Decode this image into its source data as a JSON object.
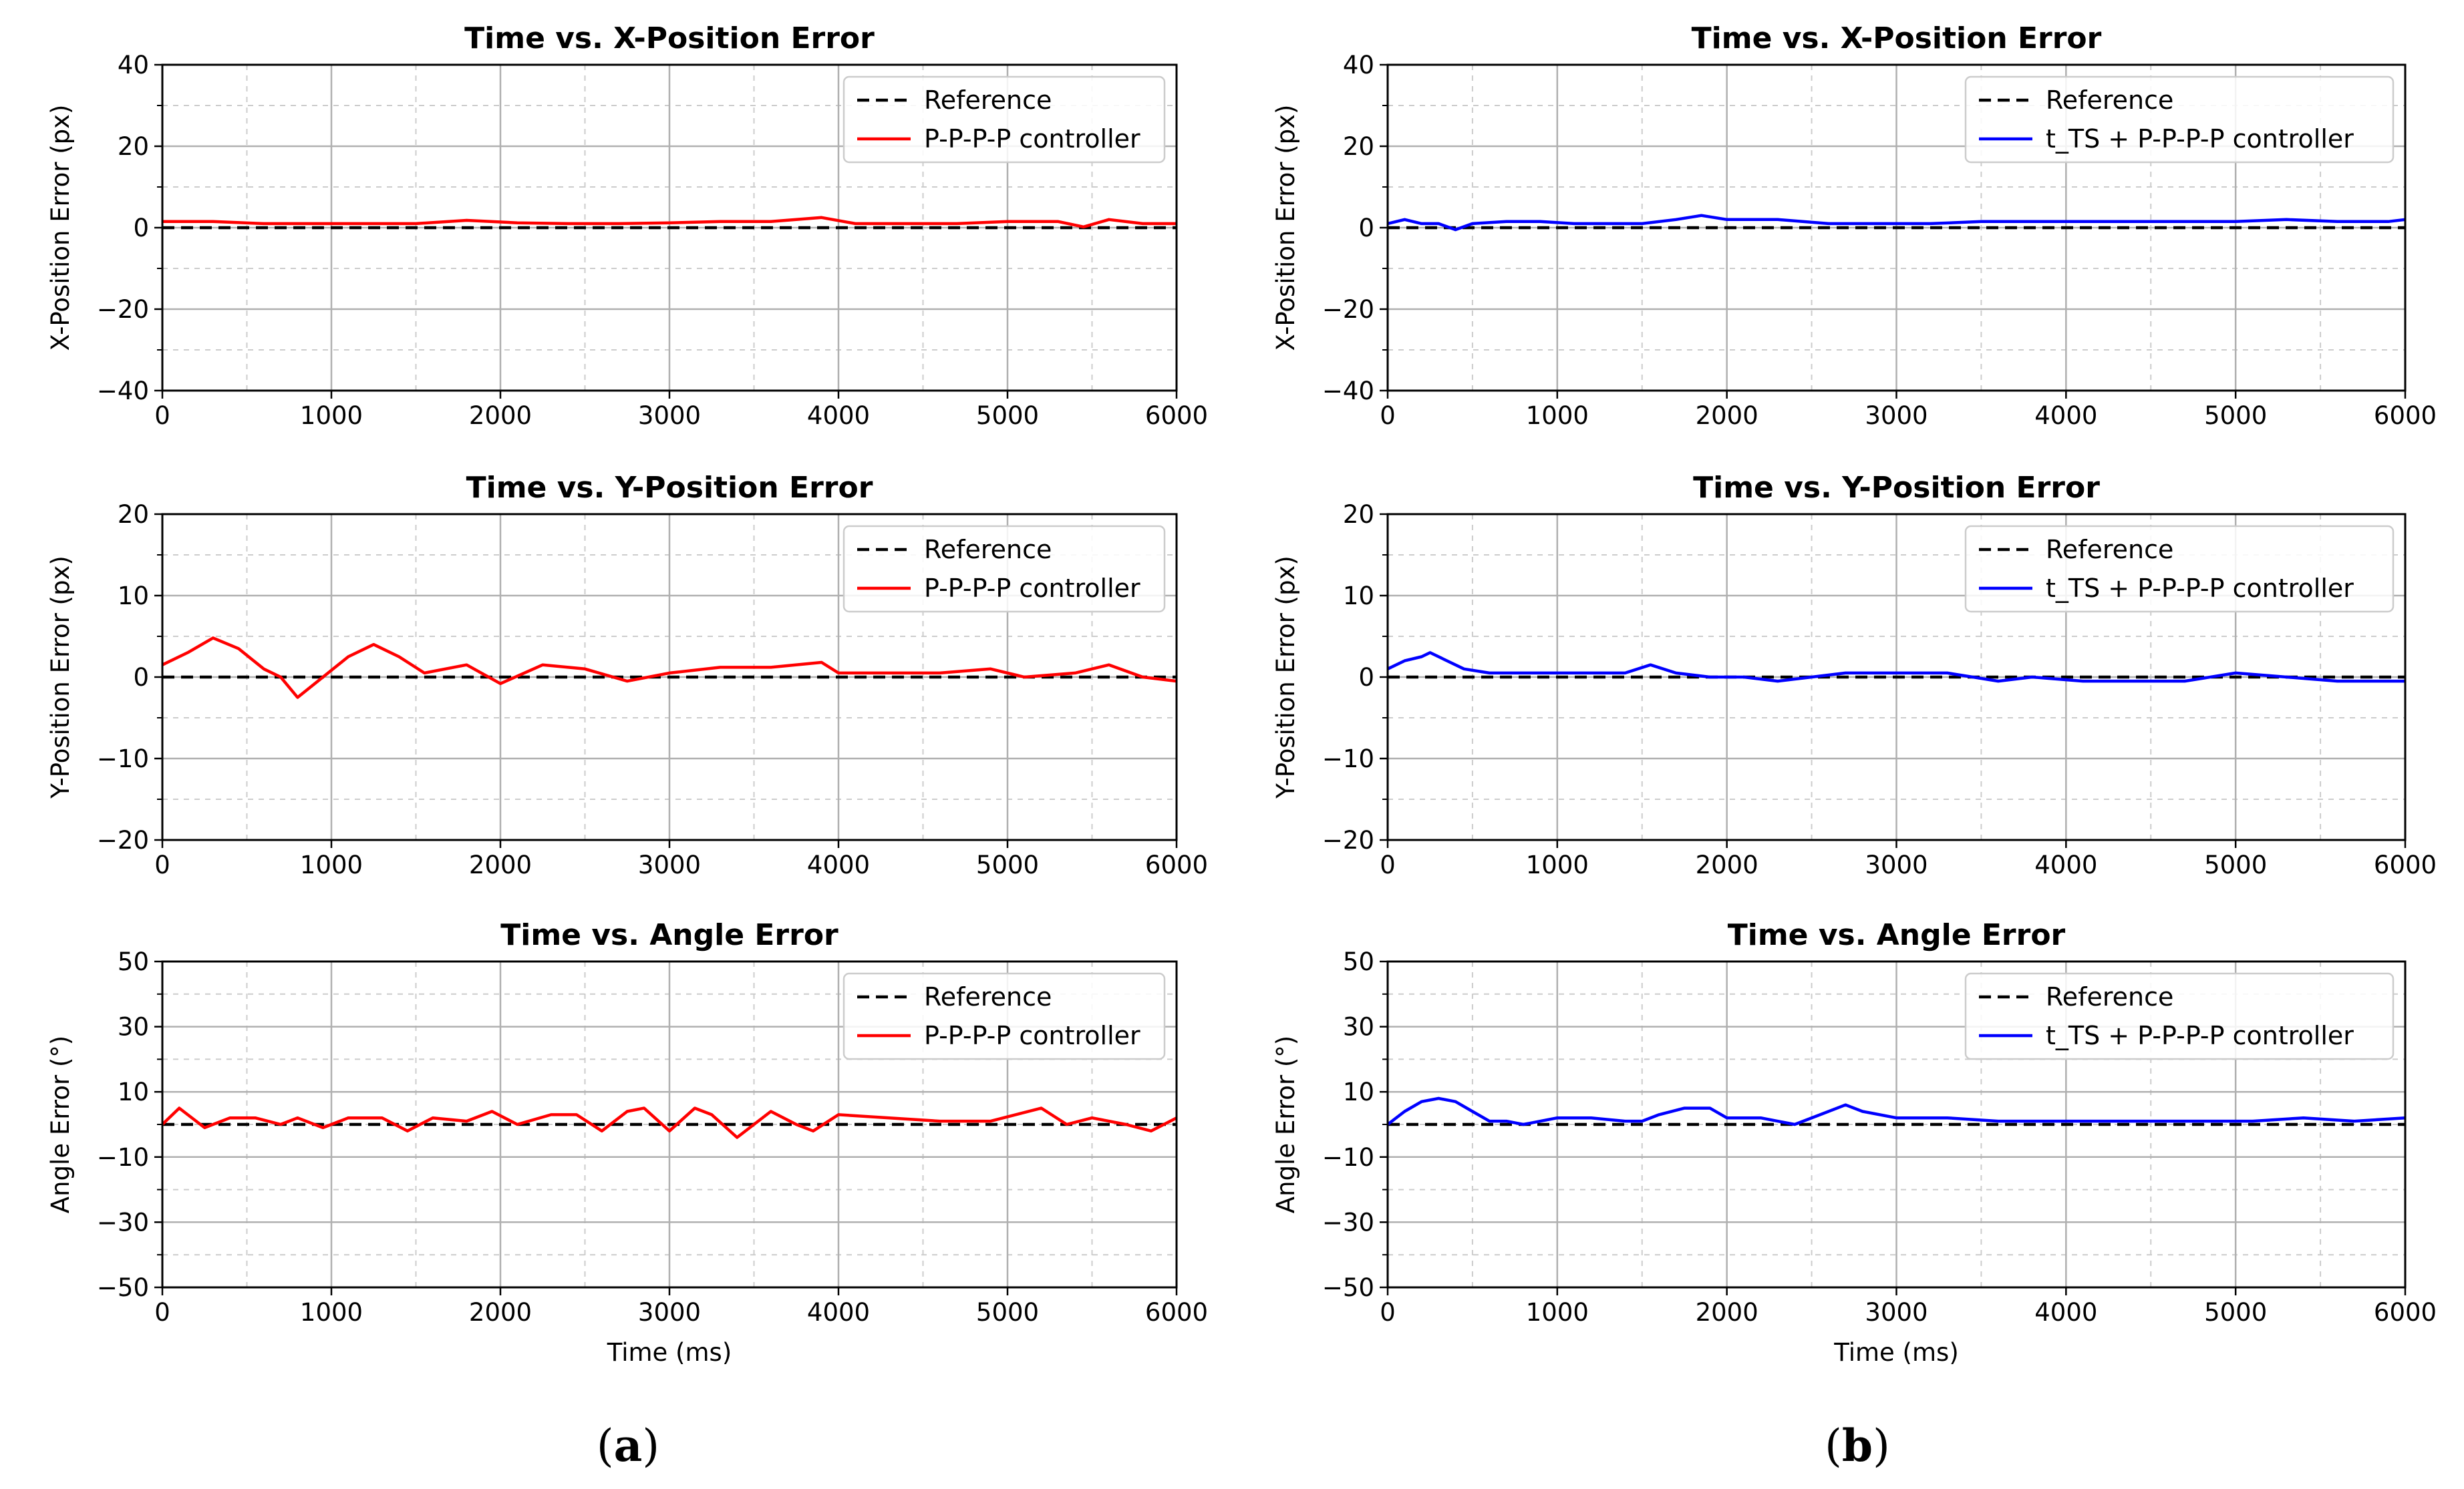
{
  "panel_labels": [
    {
      "open": "(",
      "letter": "a",
      "close": ")"
    },
    {
      "open": "(",
      "letter": "b",
      "close": ")"
    }
  ],
  "chart_data": [
    {
      "type": "line",
      "panel": "a",
      "title": "Time vs. X-Position Error",
      "xlabel": "",
      "ylabel": "X-Position Error (px)",
      "xlim": [
        0,
        6000
      ],
      "ylim": [
        -40,
        40
      ],
      "xticks": [
        0,
        1000,
        2000,
        3000,
        4000,
        5000,
        6000
      ],
      "yticks": [
        -40,
        -20,
        0,
        20,
        40
      ],
      "legend": "top-right",
      "series": [
        {
          "name": "Reference",
          "color": "#000000",
          "style": "dashed",
          "x": [
            0,
            6000
          ],
          "y": [
            0,
            0
          ]
        },
        {
          "name": "P-P-P-P controller",
          "color": "#ff0000",
          "style": "solid",
          "x": [
            0,
            300,
            600,
            900,
            1200,
            1500,
            1800,
            2100,
            2400,
            2700,
            3000,
            3300,
            3600,
            3900,
            4100,
            4400,
            4700,
            5000,
            5300,
            5450,
            5600,
            5800,
            6000
          ],
          "y": [
            1.5,
            1.5,
            1,
            1,
            1,
            1,
            1.8,
            1.2,
            1,
            1,
            1.2,
            1.5,
            1.5,
            2.5,
            1,
            1,
            1,
            1.5,
            1.5,
            0.2,
            2,
            1,
            1
          ]
        }
      ]
    },
    {
      "type": "line",
      "panel": "a",
      "title": "Time vs. Y-Position Error",
      "xlabel": "",
      "ylabel": "Y-Position Error (px)",
      "xlim": [
        0,
        6000
      ],
      "ylim": [
        -20,
        20
      ],
      "xticks": [
        0,
        1000,
        2000,
        3000,
        4000,
        5000,
        6000
      ],
      "yticks": [
        -20,
        -10,
        0,
        10,
        20
      ],
      "legend": "top-right",
      "series": [
        {
          "name": "Reference",
          "color": "#000000",
          "style": "dashed",
          "x": [
            0,
            6000
          ],
          "y": [
            0,
            0
          ]
        },
        {
          "name": "P-P-P-P controller",
          "color": "#ff0000",
          "style": "solid",
          "x": [
            0,
            150,
            300,
            450,
            600,
            700,
            800,
            950,
            1100,
            1250,
            1400,
            1550,
            1800,
            2000,
            2250,
            2500,
            2750,
            3000,
            3300,
            3600,
            3900,
            4000,
            4300,
            4600,
            4900,
            5100,
            5400,
            5600,
            5800,
            6000
          ],
          "y": [
            1.5,
            3,
            4.8,
            3.5,
            1,
            0,
            -2.5,
            0,
            2.5,
            4,
            2.5,
            0.5,
            1.5,
            -0.8,
            1.5,
            1,
            -0.5,
            0.5,
            1.2,
            1.2,
            1.8,
            0.5,
            0.5,
            0.5,
            1,
            0,
            0.5,
            1.5,
            0,
            -0.5
          ]
        }
      ]
    },
    {
      "type": "line",
      "panel": "a",
      "title": "Time vs. Angle Error",
      "xlabel": "Time (ms)",
      "ylabel": "Angle Error (°)",
      "xlim": [
        0,
        6000
      ],
      "ylim": [
        -50,
        50
      ],
      "xticks": [
        0,
        1000,
        2000,
        3000,
        4000,
        5000,
        6000
      ],
      "yticks": [
        -50,
        -30,
        -10,
        10,
        30,
        50
      ],
      "legend": "top-right",
      "series": [
        {
          "name": "Reference",
          "color": "#000000",
          "style": "dashed",
          "x": [
            0,
            6000
          ],
          "y": [
            0,
            0
          ]
        },
        {
          "name": "P-P-P-P controller",
          "color": "#ff0000",
          "style": "solid",
          "x": [
            0,
            100,
            250,
            400,
            550,
            700,
            800,
            950,
            1100,
            1300,
            1450,
            1600,
            1800,
            1950,
            2100,
            2300,
            2450,
            2600,
            2750,
            2850,
            3000,
            3150,
            3250,
            3400,
            3600,
            3750,
            3850,
            4000,
            4300,
            4600,
            4900,
            5200,
            5350,
            5500,
            5700,
            5850,
            6000
          ],
          "y": [
            0,
            5,
            -1,
            2,
            2,
            0,
            2,
            -1,
            2,
            2,
            -2,
            2,
            1,
            4,
            0,
            3,
            3,
            -2,
            4,
            5,
            -2,
            5,
            3,
            -4,
            4,
            0,
            -2,
            3,
            2,
            1,
            1,
            5,
            0,
            2,
            0,
            -2,
            2
          ]
        }
      ]
    },
    {
      "type": "line",
      "panel": "b",
      "title": "Time vs. X-Position Error",
      "xlabel": "",
      "ylabel": "X-Position Error (px)",
      "xlim": [
        0,
        6000
      ],
      "ylim": [
        -40,
        40
      ],
      "xticks": [
        0,
        1000,
        2000,
        3000,
        4000,
        5000,
        6000
      ],
      "yticks": [
        -40,
        -20,
        0,
        20,
        40
      ],
      "legend": "top-right",
      "series": [
        {
          "name": "Reference",
          "color": "#000000",
          "style": "dashed",
          "x": [
            0,
            6000
          ],
          "y": [
            0,
            0
          ]
        },
        {
          "name": "t_TS + P-P-P-P controller",
          "color": "#0000ff",
          "style": "solid",
          "x": [
            0,
            100,
            200,
            300,
            400,
            500,
            700,
            900,
            1100,
            1300,
            1500,
            1700,
            1850,
            2000,
            2300,
            2600,
            2900,
            3200,
            3500,
            3800,
            4100,
            4400,
            4700,
            5000,
            5300,
            5600,
            5900,
            6000
          ],
          "y": [
            1,
            2,
            1,
            1,
            -0.5,
            1,
            1.5,
            1.5,
            1,
            1,
            1,
            2,
            3,
            2,
            2,
            1,
            1,
            1,
            1.5,
            1.5,
            1.5,
            1.5,
            1.5,
            1.5,
            2,
            1.5,
            1.5,
            2
          ]
        }
      ]
    },
    {
      "type": "line",
      "panel": "b",
      "title": "Time vs. Y-Position Error",
      "xlabel": "",
      "ylabel": "Y-Position Error (px)",
      "xlim": [
        0,
        6000
      ],
      "ylim": [
        -20,
        20
      ],
      "xticks": [
        0,
        1000,
        2000,
        3000,
        4000,
        5000,
        6000
      ],
      "yticks": [
        -20,
        -10,
        0,
        10,
        20
      ],
      "legend": "top-right",
      "series": [
        {
          "name": "Reference",
          "color": "#000000",
          "style": "dashed",
          "x": [
            0,
            6000
          ],
          "y": [
            0,
            0
          ]
        },
        {
          "name": "t_TS + P-P-P-P controller",
          "color": "#0000ff",
          "style": "solid",
          "x": [
            0,
            100,
            200,
            250,
            350,
            450,
            600,
            800,
            1000,
            1200,
            1400,
            1550,
            1700,
            1900,
            2100,
            2300,
            2500,
            2700,
            3000,
            3300,
            3600,
            3800,
            4100,
            4400,
            4700,
            5000,
            5300,
            5600,
            5800,
            6000
          ],
          "y": [
            1,
            2,
            2.5,
            3,
            2,
            1,
            0.5,
            0.5,
            0.5,
            0.5,
            0.5,
            1.5,
            0.5,
            0,
            0,
            -0.5,
            0,
            0.5,
            0.5,
            0.5,
            -0.5,
            0,
            -0.5,
            -0.5,
            -0.5,
            0.5,
            0,
            -0.5,
            -0.5,
            -0.5
          ]
        }
      ]
    },
    {
      "type": "line",
      "panel": "b",
      "title": "Time vs. Angle Error",
      "xlabel": "Time (ms)",
      "ylabel": "Angle Error (°)",
      "xlim": [
        0,
        6000
      ],
      "ylim": [
        -50,
        50
      ],
      "xticks": [
        0,
        1000,
        2000,
        3000,
        4000,
        5000,
        6000
      ],
      "yticks": [
        -50,
        -30,
        -10,
        10,
        30,
        50
      ],
      "legend": "top-right",
      "series": [
        {
          "name": "Reference",
          "color": "#000000",
          "style": "dashed",
          "x": [
            0,
            6000
          ],
          "y": [
            0,
            0
          ]
        },
        {
          "name": "t_TS + P-P-P-P controller",
          "color": "#0000ff",
          "style": "solid",
          "x": [
            0,
            100,
            200,
            300,
            400,
            500,
            600,
            700,
            800,
            1000,
            1200,
            1400,
            1500,
            1600,
            1750,
            1900,
            2000,
            2200,
            2400,
            2550,
            2700,
            2800,
            3000,
            3300,
            3600,
            3900,
            4200,
            4500,
            4800,
            5100,
            5400,
            5700,
            6000
          ],
          "y": [
            0,
            4,
            7,
            8,
            7,
            4,
            1,
            1,
            0,
            2,
            2,
            1,
            1,
            3,
            5,
            5,
            2,
            2,
            0,
            3,
            6,
            4,
            2,
            2,
            1,
            1,
            1,
            1,
            1,
            1,
            2,
            1,
            2
          ]
        }
      ]
    }
  ]
}
